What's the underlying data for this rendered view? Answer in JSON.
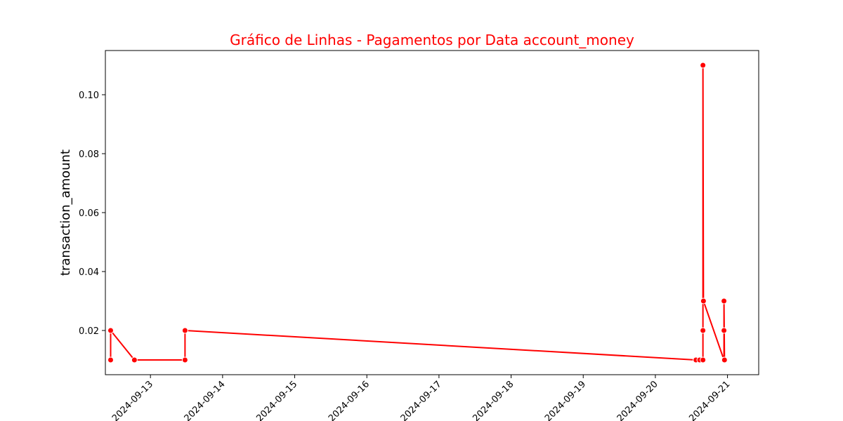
{
  "chart_data": {
    "type": "line",
    "title": "Gráfico de Linhas - Pagamentos por Data account_money",
    "xlabel": "",
    "ylabel": "transaction_amount",
    "x_ticks": [
      "2024-09-13",
      "2024-09-14",
      "2024-09-15",
      "2024-09-16",
      "2024-09-17",
      "2024-09-18",
      "2024-09-19",
      "2024-09-20",
      "2024-09-21"
    ],
    "y_ticks": [
      "0.02",
      "0.04",
      "0.06",
      "0.08",
      "0.10"
    ],
    "xlim": [
      "2024-09-12T09:00",
      "2024-09-21T10:23"
    ],
    "ylim": [
      0.005,
      0.115
    ],
    "grid": false,
    "legend": false,
    "series": [
      {
        "color": "#ff0000",
        "marker": "circle",
        "points": [
          {
            "x": "2024-09-12T10:45",
            "y": 0.01
          },
          {
            "x": "2024-09-12T10:45",
            "y": 0.02
          },
          {
            "x": "2024-09-12T18:40",
            "y": 0.01
          },
          {
            "x": "2024-09-13T11:30",
            "y": 0.01
          },
          {
            "x": "2024-09-13T11:30",
            "y": 0.02
          },
          {
            "x": "2024-09-20T13:30",
            "y": 0.01
          },
          {
            "x": "2024-09-20T14:45",
            "y": 0.01
          },
          {
            "x": "2024-09-20T15:50",
            "y": 0.01
          },
          {
            "x": "2024-09-20T15:50",
            "y": 0.02
          },
          {
            "x": "2024-09-20T15:50",
            "y": 0.11
          },
          {
            "x": "2024-09-20T16:00",
            "y": 0.03
          },
          {
            "x": "2024-09-20T22:50",
            "y": 0.01
          },
          {
            "x": "2024-09-20T22:50",
            "y": 0.02
          },
          {
            "x": "2024-09-20T22:50",
            "y": 0.03
          },
          {
            "x": "2024-09-20T23:00",
            "y": 0.01
          }
        ]
      }
    ]
  }
}
